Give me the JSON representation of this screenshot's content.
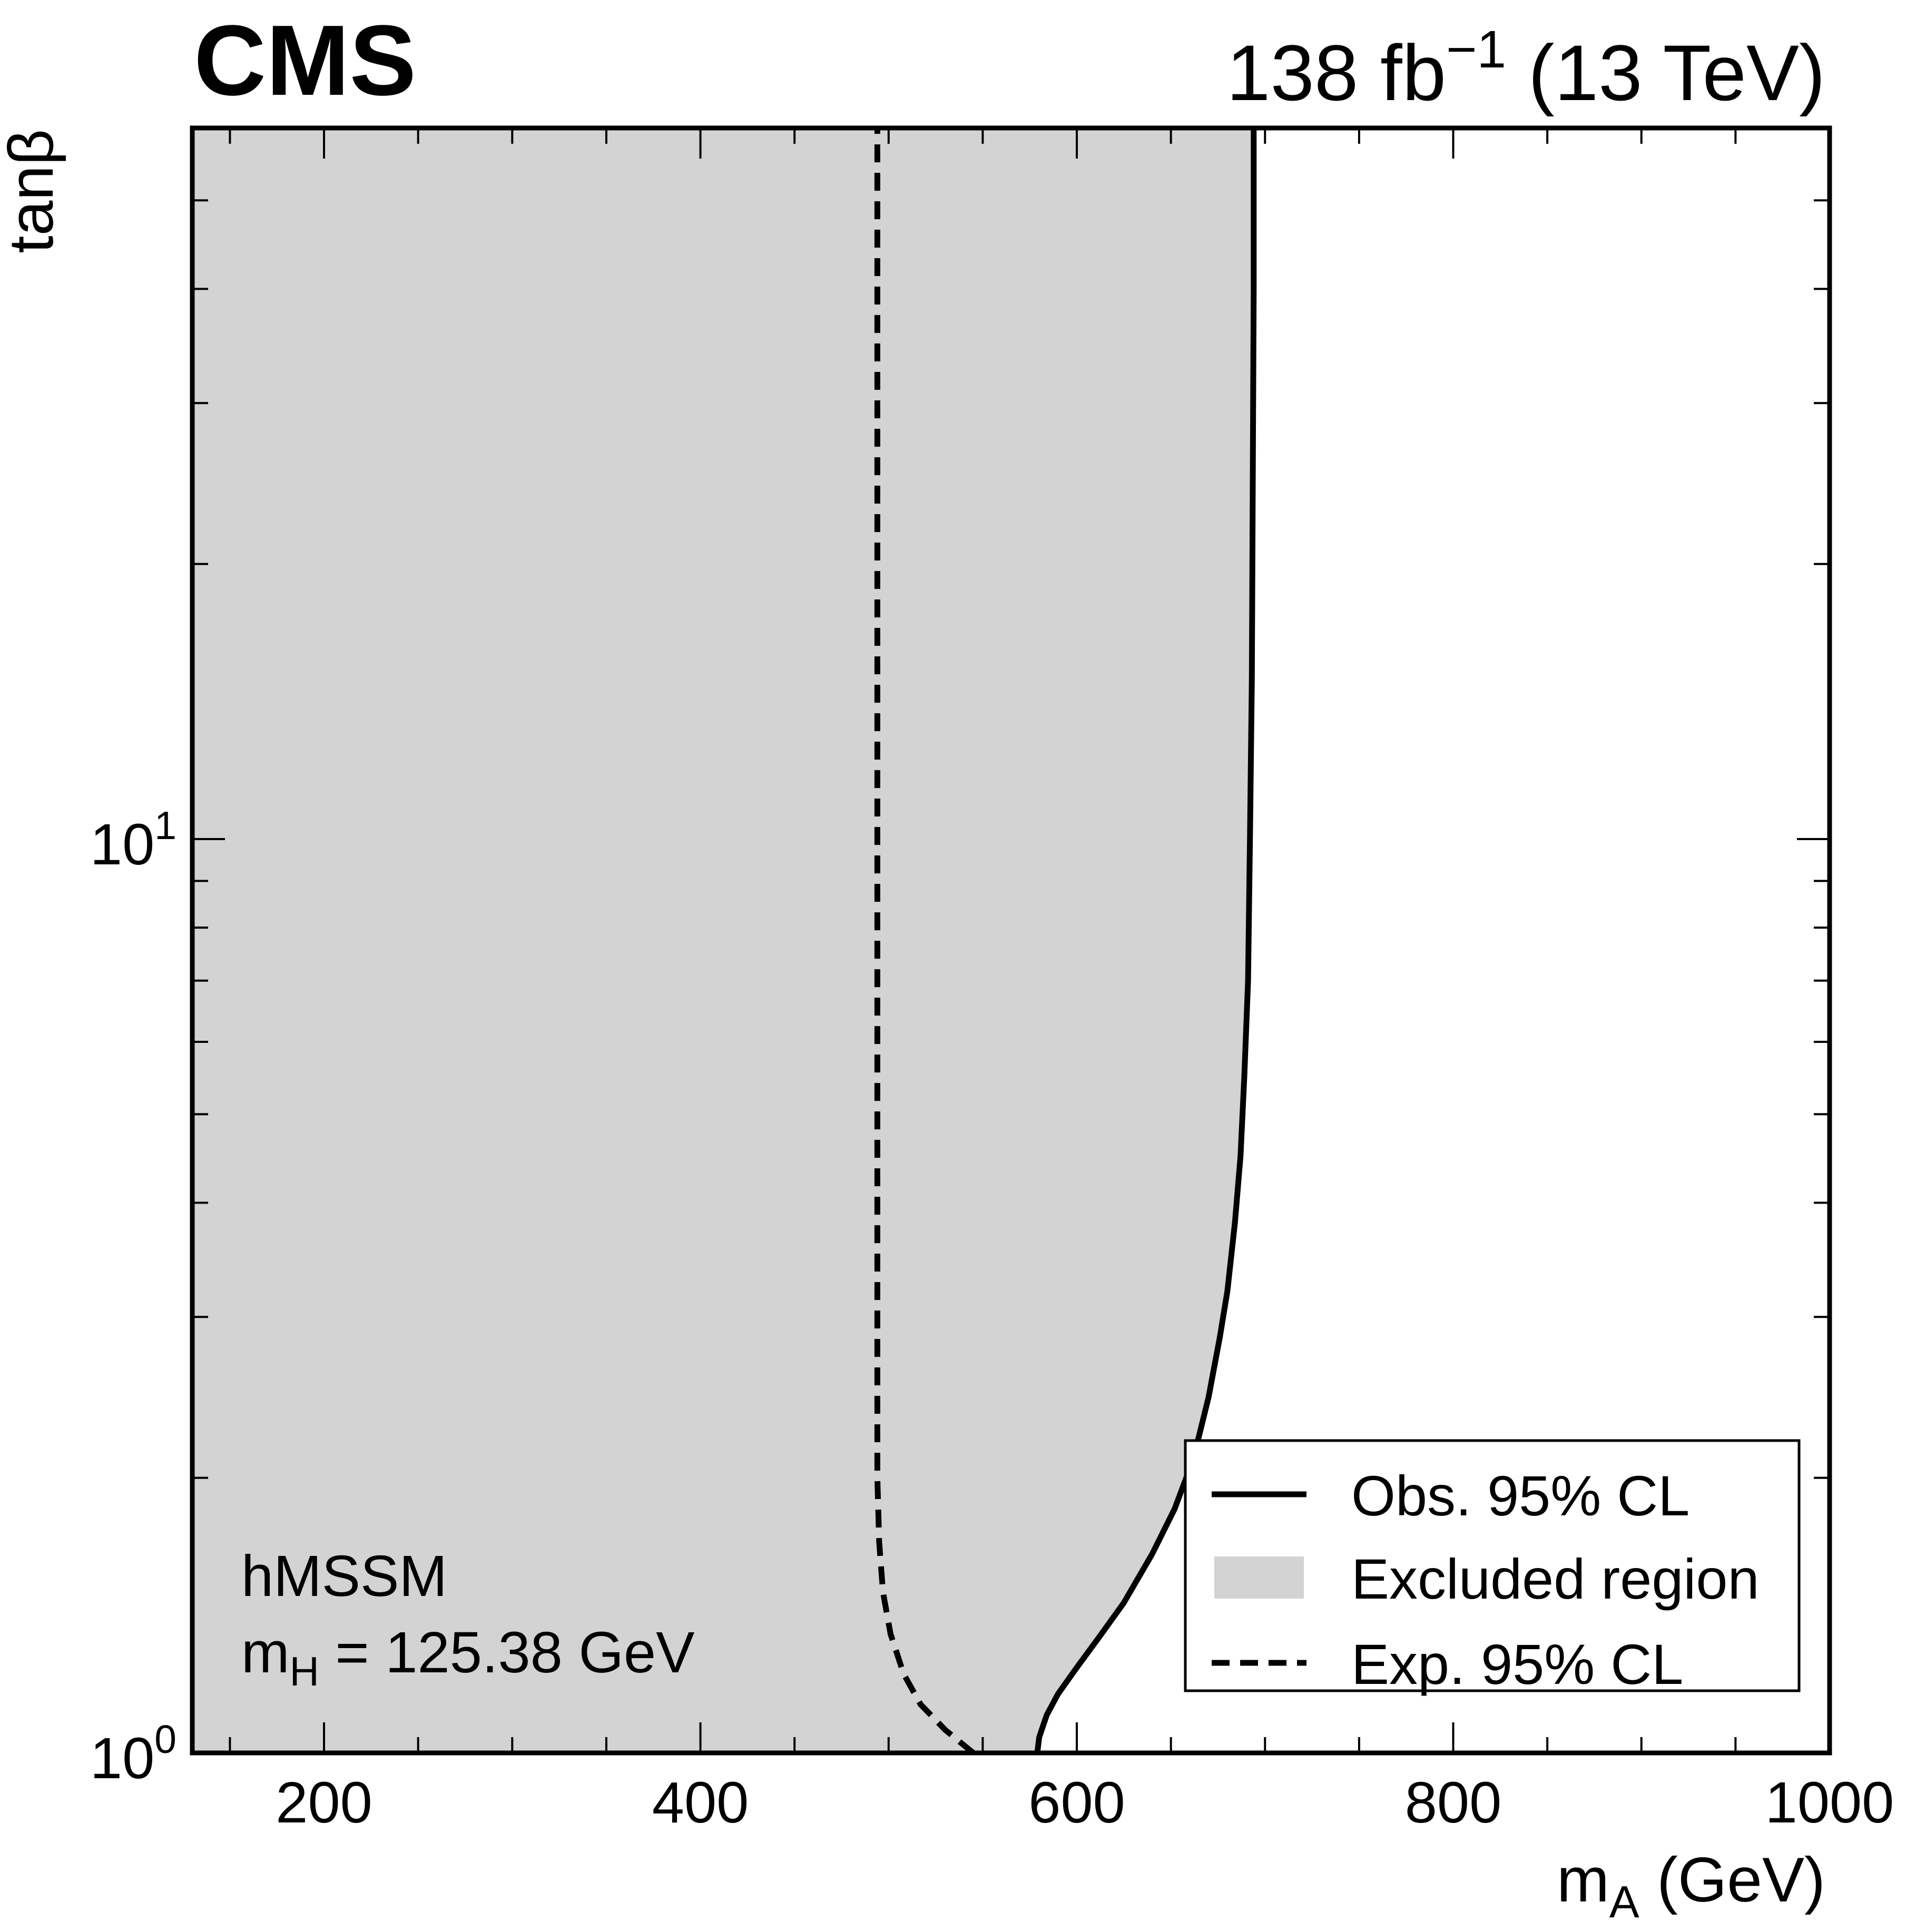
{
  "header": {
    "experiment": "CMS",
    "lumi": "138 fb",
    "lumi_exp": "−1",
    "energy": " (13 TeV)"
  },
  "axes": {
    "xlabel_main": "m",
    "xlabel_sub": "A",
    "xlabel_unit": " (GeV)",
    "ylabel": "tanβ"
  },
  "annotation": {
    "model": "hMSSM",
    "mh_main": "m",
    "mh_sub": "H",
    "mh_value": " = 125.38 GeV"
  },
  "legend": {
    "obs": "Obs. 95% CL",
    "excluded": "Excluded region",
    "exp": "Exp. 95% CL"
  },
  "colors": {
    "excluded_fill": "#d3d3d3",
    "line": "#000000"
  },
  "chart_data": {
    "type": "line",
    "xlim": [
      130,
      1000
    ],
    "ylim": [
      1,
      60
    ],
    "y_scale": "log",
    "grid": false,
    "legend_position": "bottom-right",
    "x_ticks": [
      {
        "value": 200,
        "label": "200"
      },
      {
        "value": 400,
        "label": "400"
      },
      {
        "value": 600,
        "label": "600"
      },
      {
        "value": 800,
        "label": "800"
      },
      {
        "value": 1000,
        "label": "1000"
      }
    ],
    "y_ticks": [
      {
        "value": 1,
        "label": "10",
        "exp": "0"
      },
      {
        "value": 10,
        "label": "10",
        "exp": "1"
      }
    ],
    "series": [
      {
        "name": "Obs. 95% CL",
        "style": "solid",
        "fill_left": true,
        "points": [
          [
            579,
            1.0
          ],
          [
            580,
            1.04
          ],
          [
            584,
            1.1
          ],
          [
            590,
            1.16
          ],
          [
            600,
            1.24
          ],
          [
            612,
            1.34
          ],
          [
            625,
            1.46
          ],
          [
            640,
            1.65
          ],
          [
            652,
            1.85
          ],
          [
            662,
            2.1
          ],
          [
            670,
            2.45
          ],
          [
            676,
            2.85
          ],
          [
            680,
            3.2
          ],
          [
            684,
            3.8
          ],
          [
            687,
            4.5
          ],
          [
            689,
            5.5
          ],
          [
            691,
            7.0
          ],
          [
            692,
            10.0
          ],
          [
            693,
            15
          ],
          [
            693.5,
            25
          ],
          [
            694,
            40
          ],
          [
            694,
            60
          ]
        ]
      },
      {
        "name": "Exp. 95% CL",
        "style": "dashed",
        "points": [
          [
            545,
            1.0
          ],
          [
            530,
            1.06
          ],
          [
            517,
            1.13
          ],
          [
            508,
            1.22
          ],
          [
            501,
            1.35
          ],
          [
            497,
            1.5
          ],
          [
            495,
            1.7
          ],
          [
            494,
            2.0
          ],
          [
            494,
            3.0
          ],
          [
            494,
            5.0
          ],
          [
            494,
            10.0
          ],
          [
            494,
            20
          ],
          [
            494,
            40
          ],
          [
            494,
            60
          ]
        ]
      }
    ]
  }
}
